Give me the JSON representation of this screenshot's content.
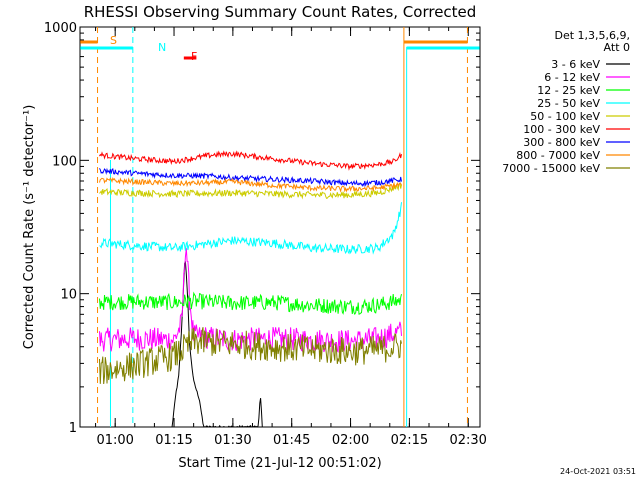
{
  "chart_data": {
    "type": "line",
    "title": "RHESSI Observing Summary Count Rates, Corrected",
    "xlabel": "Start Time (21-Jul-12 00:51:02)",
    "ylabel": "Corrected Count Rate (s⁻¹ detector⁻¹)",
    "y_scale": "log",
    "ylim": [
      1,
      1000
    ],
    "xlim_minutes": [
      51.03,
      153.0
    ],
    "x_ticks": [
      {
        "label": "01:00",
        "minutes": 60
      },
      {
        "label": "01:15",
        "minutes": 75
      },
      {
        "label": "01:30",
        "minutes": 90
      },
      {
        "label": "01:45",
        "minutes": 105
      },
      {
        "label": "02:00",
        "minutes": 120
      },
      {
        "label": "02:15",
        "minutes": 135
      },
      {
        "label": "02:30",
        "minutes": 150
      }
    ],
    "y_ticks": [
      {
        "label": "1",
        "value": 1
      },
      {
        "label": "10",
        "value": 10
      },
      {
        "label": "100",
        "value": 100
      },
      {
        "label": "1000",
        "value": 1000
      }
    ],
    "legend_header": [
      "Det 1,3,5,6,9,",
      "Att 0"
    ],
    "legend_position": "right",
    "series": [
      {
        "name": "3 - 6 keV",
        "color": "#000000",
        "points": [
          [
            74.5,
            1
          ],
          [
            75.5,
            1.8
          ],
          [
            76.2,
            2.4
          ],
          [
            77,
            6
          ],
          [
            77.8,
            20
          ],
          [
            78.5,
            9
          ],
          [
            79,
            4
          ],
          [
            80,
            2.2
          ],
          [
            81.5,
            1.6
          ],
          [
            82.5,
            1
          ],
          [
            96.5,
            1
          ],
          [
            97,
            1.8
          ],
          [
            97.5,
            1
          ]
        ]
      },
      {
        "name": "6 - 12 keV",
        "color": "#ff00ff",
        "points": [
          [
            56,
            4.5
          ],
          [
            65,
            4.6
          ],
          [
            75,
            4.5
          ],
          [
            77,
            6
          ],
          [
            78,
            26
          ],
          [
            79,
            9
          ],
          [
            80,
            4.8
          ],
          [
            90,
            4.5
          ],
          [
            100,
            4.6
          ],
          [
            110,
            4.5
          ],
          [
            120,
            4.4
          ],
          [
            127,
            4.6
          ],
          [
            133,
            5.2
          ]
        ]
      },
      {
        "name": "12 - 25 keV",
        "color": "#00ff00",
        "points": [
          [
            56,
            8.6
          ],
          [
            65,
            8.7
          ],
          [
            75,
            8.6
          ],
          [
            80,
            8.8
          ],
          [
            90,
            8.5
          ],
          [
            100,
            8.6
          ],
          [
            110,
            8.2
          ],
          [
            120,
            8.0
          ],
          [
            127,
            8.2
          ],
          [
            133,
            9.0
          ]
        ]
      },
      {
        "name": "25 - 50 keV",
        "color": "#00ffff",
        "points": [
          [
            56,
            24
          ],
          [
            65,
            23
          ],
          [
            75,
            22
          ],
          [
            85,
            24
          ],
          [
            90,
            25
          ],
          [
            100,
            24
          ],
          [
            110,
            22
          ],
          [
            120,
            21.5
          ],
          [
            127,
            22
          ],
          [
            131,
            28
          ],
          [
            133,
            45
          ]
        ]
      },
      {
        "name": "50 - 100 keV",
        "color": "#cccc00",
        "points": [
          [
            56,
            58
          ],
          [
            65,
            57
          ],
          [
            75,
            56
          ],
          [
            90,
            57
          ],
          [
            100,
            56
          ],
          [
            110,
            55
          ],
          [
            120,
            55
          ],
          [
            127,
            57
          ],
          [
            133,
            65
          ]
        ]
      },
      {
        "name": "100 - 300 keV",
        "color": "#ff0000",
        "points": [
          [
            56,
            110
          ],
          [
            65,
            103
          ],
          [
            75,
            98
          ],
          [
            85,
            110
          ],
          [
            90,
            112
          ],
          [
            100,
            103
          ],
          [
            110,
            95
          ],
          [
            120,
            90
          ],
          [
            127,
            93
          ],
          [
            131,
            98
          ],
          [
            133,
            110
          ]
        ]
      },
      {
        "name": "300 - 800 keV",
        "color": "#0000ff",
        "points": [
          [
            56,
            84
          ],
          [
            65,
            80
          ],
          [
            75,
            77
          ],
          [
            85,
            76
          ],
          [
            90,
            74
          ],
          [
            100,
            72
          ],
          [
            110,
            70
          ],
          [
            120,
            67
          ],
          [
            127,
            68
          ],
          [
            133,
            72
          ]
        ]
      },
      {
        "name": "800 - 7000 keV",
        "color": "#ff8800",
        "points": [
          [
            56,
            71
          ],
          [
            65,
            69
          ],
          [
            75,
            67
          ],
          [
            85,
            68
          ],
          [
            90,
            69
          ],
          [
            100,
            65
          ],
          [
            110,
            62
          ],
          [
            120,
            61
          ],
          [
            127,
            62
          ],
          [
            133,
            66
          ]
        ]
      },
      {
        "name": "7000 - 15000 keV",
        "color": "#808000",
        "points": [
          [
            56,
            2.6
          ],
          [
            65,
            2.9
          ],
          [
            75,
            3.4
          ],
          [
            80,
            4.4
          ],
          [
            90,
            4.2
          ],
          [
            100,
            4.0
          ],
          [
            110,
            3.8
          ],
          [
            120,
            3.7
          ],
          [
            127,
            3.8
          ],
          [
            133,
            4.1
          ]
        ]
      }
    ],
    "annotations": [
      {
        "label": "S",
        "color": "#ff8800"
      },
      {
        "label": "N",
        "color": "#00ffff"
      },
      {
        "label": "F",
        "color": "#ff0000"
      }
    ],
    "timestamp": "24-Oct-2021 03:51"
  }
}
